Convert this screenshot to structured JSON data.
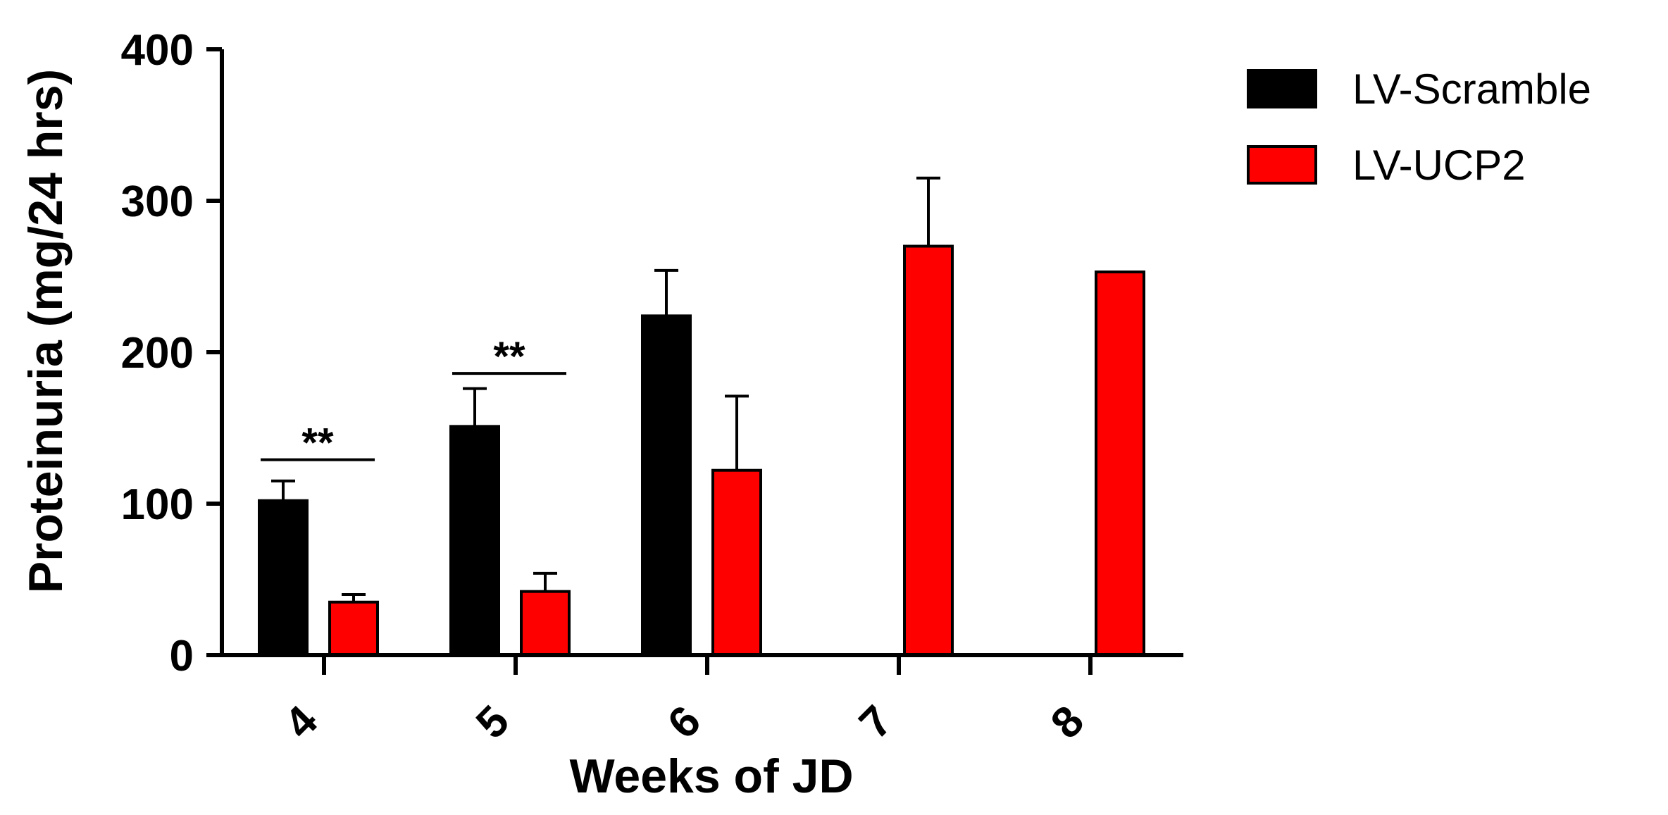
{
  "chart_data": {
    "type": "bar",
    "xlabel": "Weeks of JD",
    "ylabel": "Proteinuria (mg/24 hrs)",
    "ylim": [
      0,
      400
    ],
    "yticks": [
      "0",
      "100",
      "200",
      "300",
      "400"
    ],
    "categories": [
      "4",
      "5",
      "6",
      "7",
      "8"
    ],
    "legend_position": "top-right",
    "series": [
      {
        "name": "LV-Scramble",
        "color": "#000000",
        "values": [
          102,
          151,
          224,
          null,
          null
        ],
        "errors": [
          13,
          25,
          30,
          null,
          null
        ]
      },
      {
        "name": "LV-UCP2",
        "color": "#ff0000",
        "values": [
          35,
          42,
          122,
          270,
          253
        ],
        "errors": [
          5,
          12,
          49,
          45,
          null
        ]
      }
    ],
    "annotations": [
      {
        "category": "4",
        "label": "**",
        "y": 129
      },
      {
        "category": "5",
        "label": "**",
        "y": 186
      }
    ]
  }
}
